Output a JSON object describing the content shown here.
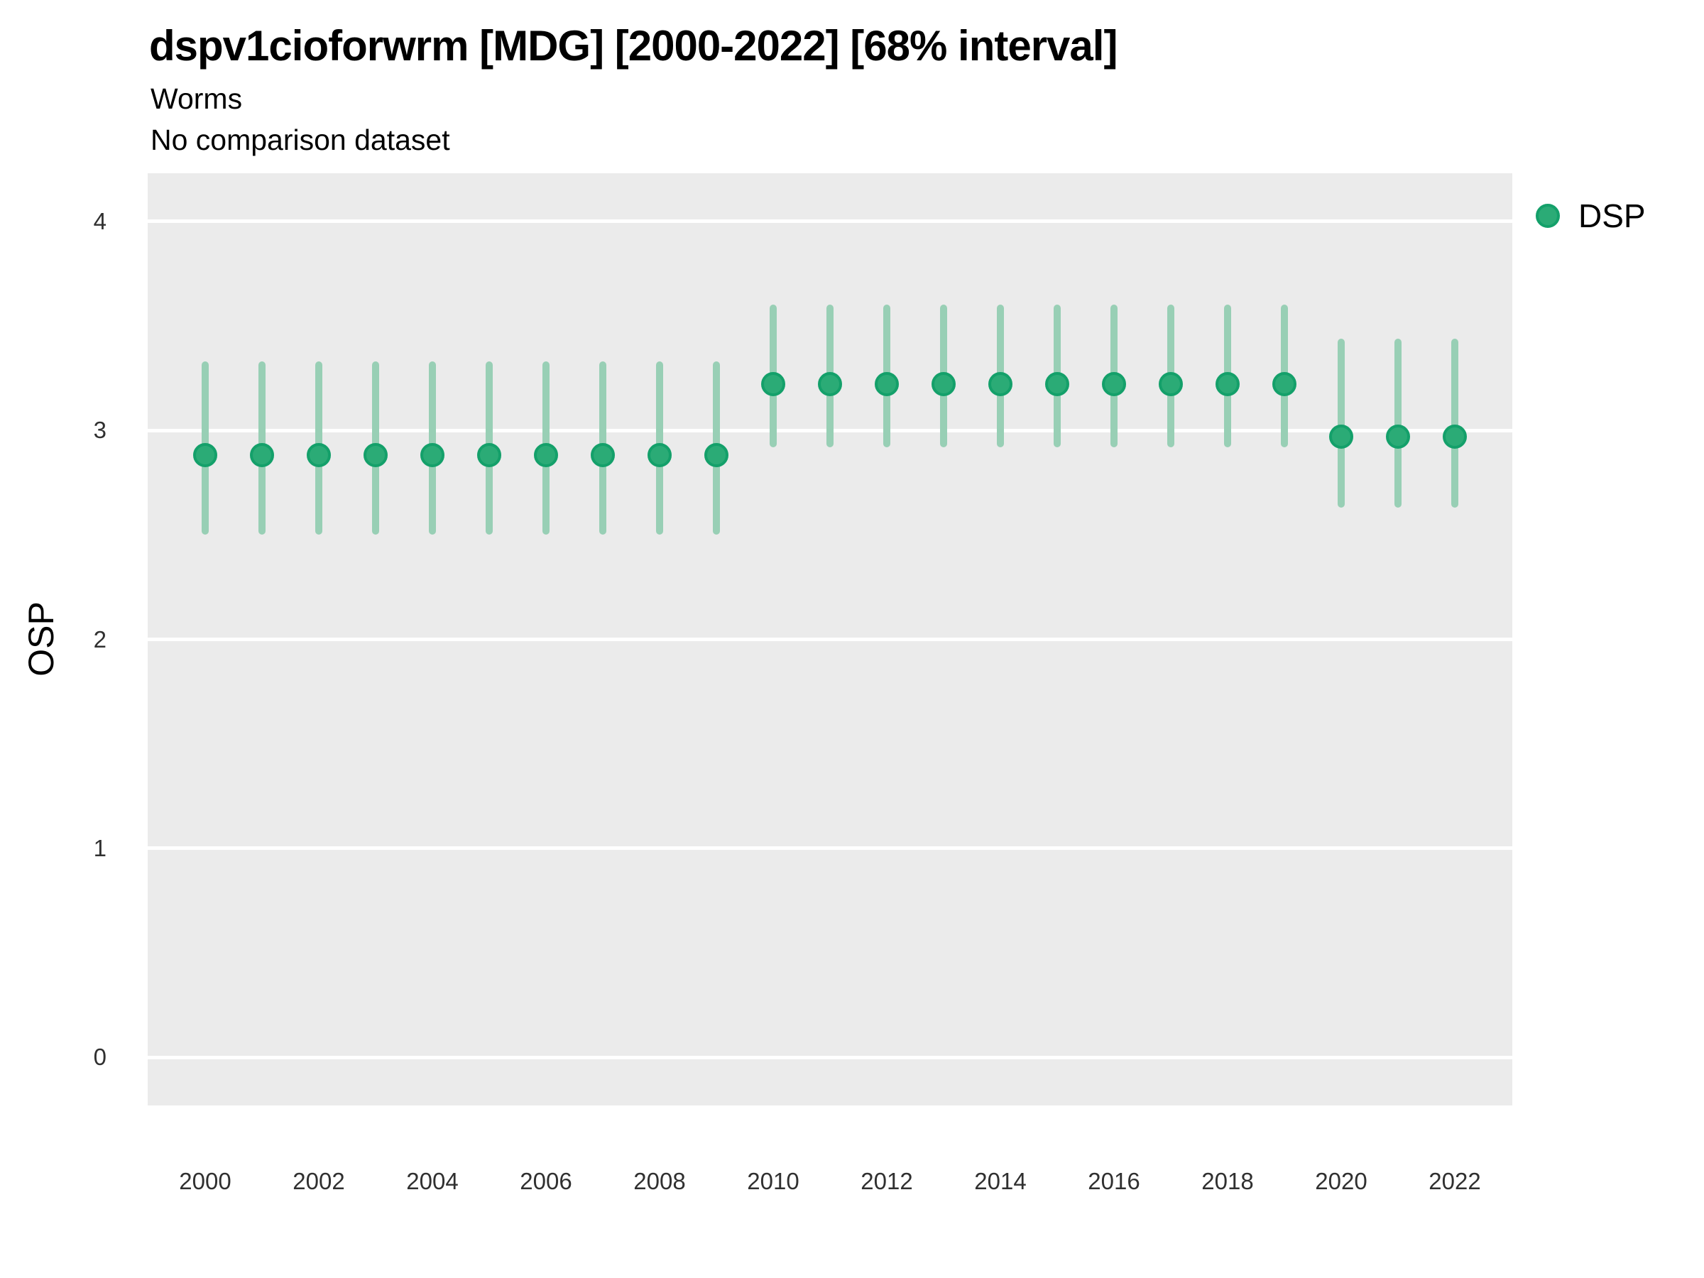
{
  "colors": {
    "panel_bg": "#ebebeb",
    "gridline": "#ffffff",
    "point_fill": "#2bab76",
    "point_stroke": "#14a06a",
    "interval_bar": "#98cfb5",
    "title_text": "#000000",
    "tick_text": "#303030"
  },
  "legend": {
    "position": "right-top",
    "items": [
      {
        "label": "DSP",
        "marker": "circle"
      }
    ]
  },
  "chart_data": {
    "type": "scatter",
    "subtype": "pointrange",
    "title": "dspv1cioforwrm [MDG] [2000-2022] [68% interval]",
    "subtitle": "Worms",
    "note": "No comparison dataset",
    "interval": "68%",
    "xlabel": "",
    "ylabel": "OSP",
    "grid": "major-horizontal-white-on-gray",
    "legend_position": "right-top",
    "ylim": [
      -0.23,
      4.23
    ],
    "y_ticks": [
      0,
      1,
      2,
      3,
      4
    ],
    "x_tick_labels": [
      "2000",
      "2002",
      "2004",
      "2006",
      "2008",
      "2010",
      "2012",
      "2014",
      "2016",
      "2018",
      "2020",
      "2022"
    ],
    "x": [
      2000,
      2001,
      2002,
      2003,
      2004,
      2005,
      2006,
      2007,
      2008,
      2009,
      2010,
      2011,
      2012,
      2013,
      2014,
      2015,
      2016,
      2017,
      2018,
      2019,
      2020,
      2021,
      2022
    ],
    "series": [
      {
        "name": "DSP",
        "values": [
          2.88,
          2.88,
          2.88,
          2.88,
          2.88,
          2.88,
          2.88,
          2.88,
          2.88,
          2.88,
          3.22,
          3.22,
          3.22,
          3.22,
          3.22,
          3.22,
          3.22,
          3.22,
          3.22,
          3.22,
          2.97,
          2.97,
          2.97
        ],
        "lower": [
          2.5,
          2.5,
          2.5,
          2.5,
          2.5,
          2.5,
          2.5,
          2.5,
          2.5,
          2.5,
          2.92,
          2.92,
          2.92,
          2.92,
          2.92,
          2.92,
          2.92,
          2.92,
          2.92,
          2.92,
          2.63,
          2.63,
          2.63
        ],
        "upper": [
          3.33,
          3.33,
          3.33,
          3.33,
          3.33,
          3.33,
          3.33,
          3.33,
          3.33,
          3.33,
          3.6,
          3.6,
          3.6,
          3.6,
          3.6,
          3.6,
          3.6,
          3.6,
          3.6,
          3.6,
          3.44,
          3.44,
          3.44
        ]
      }
    ]
  }
}
